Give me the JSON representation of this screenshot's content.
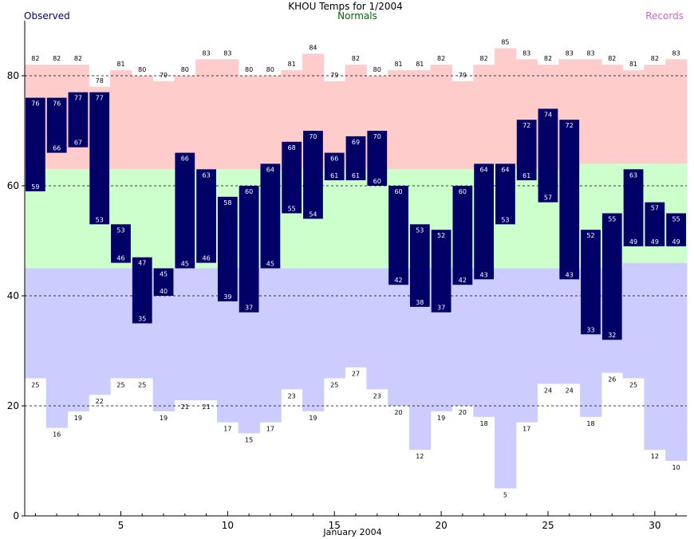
{
  "chart_data": {
    "type": "bar",
    "title": "KHOU Temps for 1/2004",
    "legend": {
      "observed": "Observed",
      "normals": "Normals",
      "records": "Records"
    },
    "xlabel": "January 2004",
    "ylabel": "",
    "ylim": [
      0,
      90
    ],
    "xlim": [
      0.5,
      31.5
    ],
    "grid": true,
    "yticks": [
      0,
      20,
      40,
      60,
      80
    ],
    "xticks": [
      5,
      10,
      15,
      20,
      25,
      30
    ],
    "days": [
      1,
      2,
      3,
      4,
      5,
      6,
      7,
      8,
      9,
      10,
      11,
      12,
      13,
      14,
      15,
      16,
      17,
      18,
      19,
      20,
      21,
      22,
      23,
      24,
      25,
      26,
      27,
      28,
      29,
      30,
      31
    ],
    "observed_high": [
      76,
      76,
      77,
      77,
      53,
      47,
      45,
      66,
      63,
      58,
      60,
      64,
      68,
      70,
      66,
      69,
      70,
      60,
      53,
      52,
      60,
      64,
      64,
      72,
      74,
      72,
      52,
      55,
      63,
      57,
      55
    ],
    "observed_low": [
      59,
      66,
      67,
      53,
      46,
      35,
      40,
      45,
      46,
      39,
      37,
      45,
      55,
      54,
      61,
      61,
      60,
      42,
      38,
      37,
      42,
      43,
      53,
      61,
      57,
      43,
      33,
      32,
      49,
      49,
      49
    ],
    "normal_high": [
      63,
      63,
      63,
      63,
      63,
      63,
      63,
      63,
      63,
      63,
      63,
      63,
      63,
      63,
      63,
      63,
      63,
      63,
      63,
      63,
      63,
      63,
      63,
      63,
      63,
      63,
      64,
      64,
      64,
      64,
      64
    ],
    "normal_low": [
      45,
      45,
      45,
      45,
      45,
      45,
      45,
      45,
      45,
      45,
      45,
      45,
      45,
      45,
      45,
      45,
      45,
      45,
      45,
      45,
      45,
      45,
      45,
      45,
      45,
      45,
      45,
      45,
      46,
      46,
      46
    ],
    "record_high": [
      82,
      82,
      82,
      78,
      81,
      80,
      79,
      80,
      83,
      83,
      80,
      80,
      81,
      84,
      79,
      82,
      80,
      81,
      81,
      82,
      79,
      82,
      85,
      83,
      82,
      83,
      83,
      82,
      81,
      82,
      83
    ],
    "record_low": [
      25,
      16,
      19,
      22,
      25,
      25,
      19,
      21,
      21,
      17,
      15,
      17,
      23,
      19,
      25,
      27,
      23,
      20,
      12,
      19,
      20,
      18,
      5,
      17,
      24,
      24,
      18,
      26,
      25,
      12,
      10
    ],
    "colors": {
      "observed": "#000066",
      "normals_band": "#ccffcc",
      "record_high_band": "#ffcccc",
      "record_low_band": "#ccccff",
      "title_observed": "#000080",
      "title_normals": "#006600",
      "title_records": "#cc66cc",
      "value_text_on_bar": "#ffffff",
      "value_text": "#000000"
    }
  }
}
